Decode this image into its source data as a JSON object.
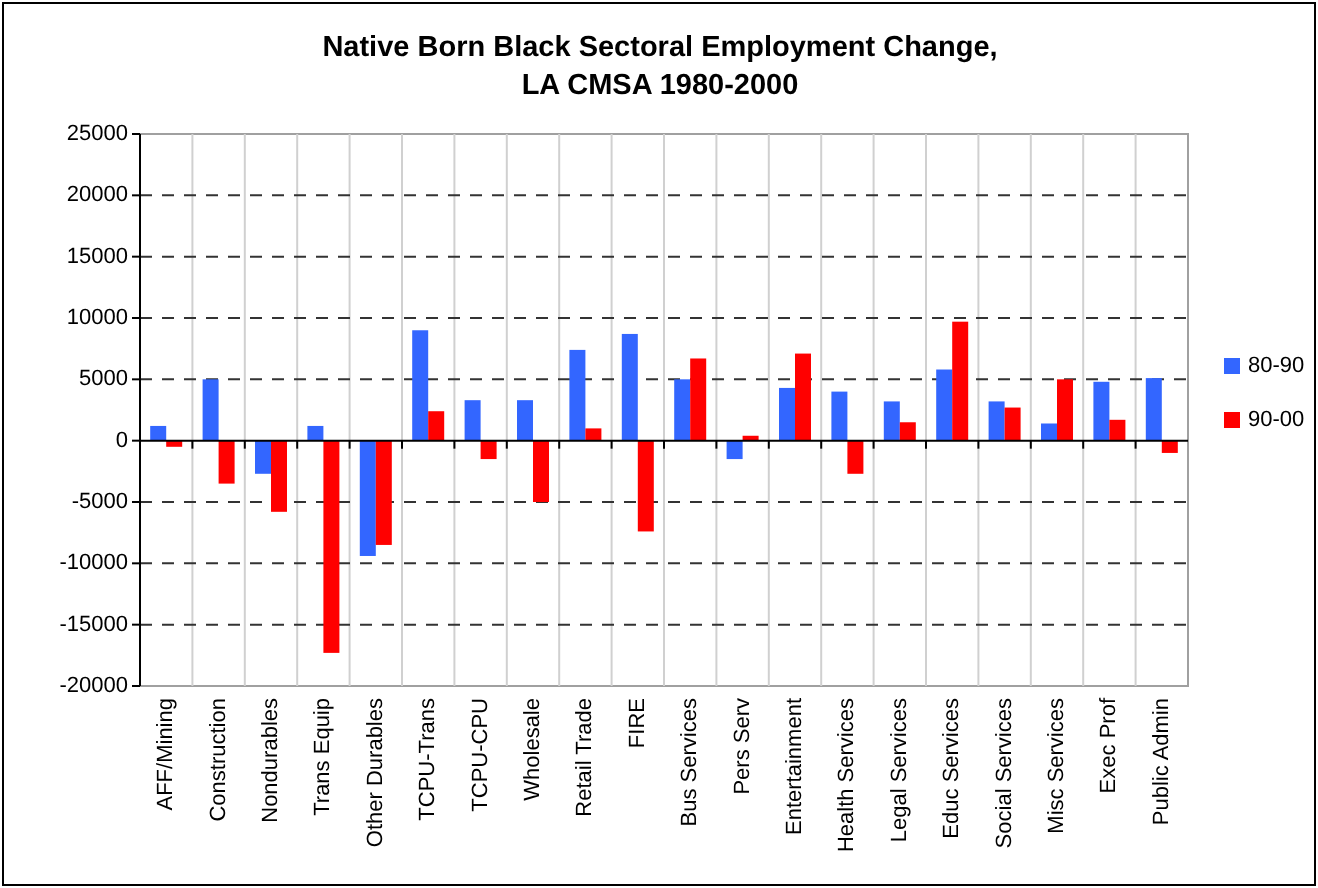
{
  "chart_data": {
    "type": "bar",
    "title": "Native Born Black Sectoral Employment Change,\nLA CMSA 1980-2000",
    "categories": [
      "AFF/Mining",
      "Construction",
      "Nondurables",
      "Trans Equip",
      "Other Durables",
      "TCPU-Trans",
      "TCPU-CPU",
      "Wholesale",
      "Retail Trade",
      "FIRE",
      "Bus Services",
      "Pers Serv",
      "Entertainment",
      "Health Services",
      "Legal Services",
      "Educ Services",
      "Social Services",
      "Misc Services",
      "Exec Prof",
      "Public Admin"
    ],
    "series": [
      {
        "name": "80-90",
        "color": "#3366ff",
        "values": [
          1200,
          5000,
          -2700,
          1200,
          -9400,
          9000,
          3300,
          3300,
          7400,
          8700,
          5000,
          -1500,
          4300,
          4000,
          3200,
          5800,
          3200,
          1400,
          4800,
          5100
        ]
      },
      {
        "name": "90-00",
        "color": "#ff0000",
        "values": [
          -500,
          -3500,
          -5800,
          -17300,
          -8500,
          2400,
          -1500,
          -5000,
          1000,
          -7400,
          6700,
          400,
          7100,
          -2700,
          1500,
          9700,
          2700,
          5000,
          1700,
          -1000
        ]
      }
    ],
    "ylim": [
      -20000,
      25000
    ],
    "yticks": [
      -20000,
      -15000,
      -10000,
      -5000,
      0,
      5000,
      10000,
      15000,
      20000,
      25000
    ],
    "grid": true,
    "legend": "right"
  }
}
